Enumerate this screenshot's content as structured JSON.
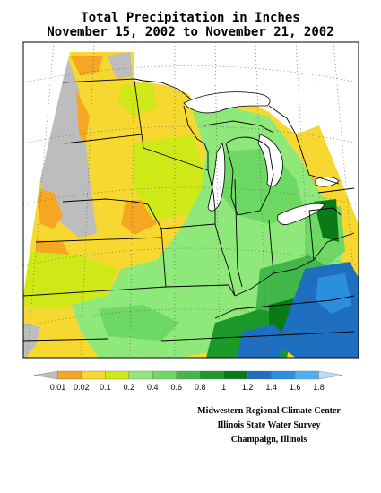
{
  "title": {
    "line1": "Total Precipitation in Inches",
    "line2": "November 15, 2002 to November 21, 2002"
  },
  "legend": {
    "tick_labels": [
      "0.01",
      "0.02",
      "0.1",
      "0.2",
      "0.4",
      "0.6",
      "0.8",
      "1",
      "1.2",
      "1.4",
      "1.6",
      "1.8"
    ],
    "colors": [
      "#bdbdbd",
      "#f5a623",
      "#f6d830",
      "#cfe817",
      "#8ee87a",
      "#6ed864",
      "#42b84a",
      "#1b9a2a",
      "#0a7a18",
      "#1f6fc0",
      "#2b8fe0",
      "#4cb0f0",
      "#b8ddf5"
    ]
  },
  "credits": {
    "line1": "Midwestern Regional Climate Center",
    "line2": "Illinois State Water Survey",
    "line3": "Champaign, Illinois"
  },
  "map_colors": {
    "background": "#ffffff",
    "trace": "#bdbdbd",
    "light": "#f6d830",
    "very_light": "#f5a623",
    "low": "#cfe817",
    "moderate": "#8ee87a",
    "medium": "#6ed864",
    "high": "#42b84a",
    "higher": "#1b9a2a",
    "highest_green": "#0a7a18",
    "blue": "#1f6fc0",
    "light_blue": "#2b8fe0"
  }
}
